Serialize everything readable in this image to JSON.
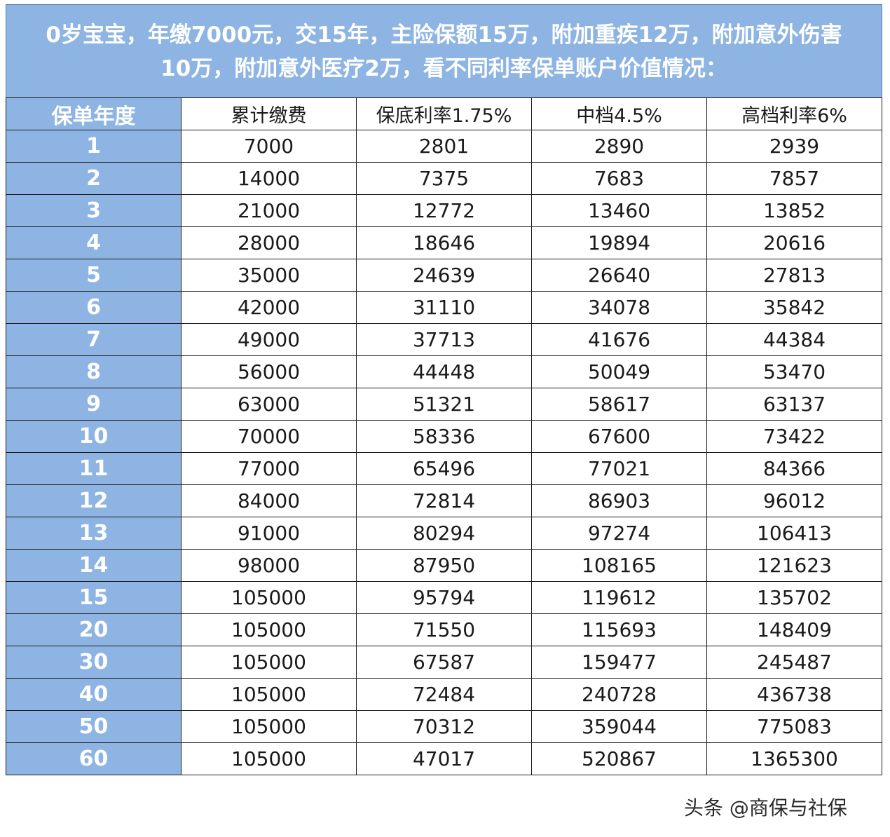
{
  "title": {
    "line1": "0岁宝宝，年缴7000元，交15年，主险保额15万，附加重疾12万，附加意外伤害",
    "line2": "10万，附加意外医疗2万，看不同利率保单账户价值情况："
  },
  "table": {
    "headers": [
      "保单年度",
      "累计缴费",
      "保底利率1.75%",
      "中档4.5%",
      "高档利率6%"
    ],
    "rows": [
      [
        "1",
        "7000",
        "2801",
        "2890",
        "2939"
      ],
      [
        "2",
        "14000",
        "7375",
        "7683",
        "7857"
      ],
      [
        "3",
        "21000",
        "12772",
        "13460",
        "13852"
      ],
      [
        "4",
        "28000",
        "18646",
        "19894",
        "20616"
      ],
      [
        "5",
        "35000",
        "24639",
        "26640",
        "27813"
      ],
      [
        "6",
        "42000",
        "31110",
        "34078",
        "35842"
      ],
      [
        "7",
        "49000",
        "37713",
        "41676",
        "44384"
      ],
      [
        "8",
        "56000",
        "44448",
        "50049",
        "53470"
      ],
      [
        "9",
        "63000",
        "51321",
        "58617",
        "63137"
      ],
      [
        "10",
        "70000",
        "58336",
        "67600",
        "73422"
      ],
      [
        "11",
        "77000",
        "65496",
        "77021",
        "84366"
      ],
      [
        "12",
        "84000",
        "72814",
        "86903",
        "96012"
      ],
      [
        "13",
        "91000",
        "80294",
        "97274",
        "106413"
      ],
      [
        "14",
        "98000",
        "87950",
        "108165",
        "121623"
      ],
      [
        "15",
        "105000",
        "95794",
        "119612",
        "135702"
      ],
      [
        "20",
        "105000",
        "71550",
        "115693",
        "148409"
      ],
      [
        "30",
        "105000",
        "67587",
        "159477",
        "245487"
      ],
      [
        "40",
        "105000",
        "72484",
        "240728",
        "436738"
      ],
      [
        "50",
        "105000",
        "70312",
        "359044",
        "775083"
      ],
      [
        "60",
        "105000",
        "47017",
        "520867",
        "1365300"
      ]
    ]
  },
  "watermark": "头条 @商保与社保",
  "colors": {
    "header_fill": "#8db4e2",
    "header_text": "#ffffff",
    "grid": "#1c1c1c"
  }
}
